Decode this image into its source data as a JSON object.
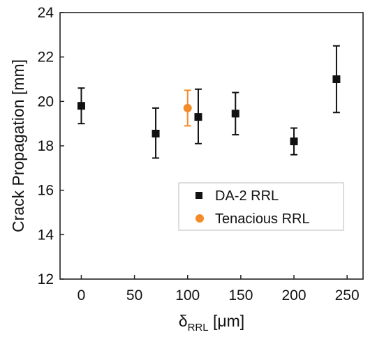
{
  "chart_data": {
    "type": "scatter",
    "xlabel": "δ",
    "xlabel_subscript": "RRL",
    "xlabel_unit": " [μm]",
    "ylabel": "Crack Propagation [mm]",
    "xlim": [
      -20,
      265
    ],
    "ylim": [
      12,
      24
    ],
    "xticks": [
      "0",
      "50",
      "100",
      "150",
      "200",
      "250"
    ],
    "yticks": [
      "12",
      "14",
      "16",
      "18",
      "20",
      "22",
      "24"
    ],
    "legend_position": "lower-right",
    "series": [
      {
        "name": "DA-2 RRL",
        "marker": "square",
        "color": "#111111",
        "points": [
          {
            "x": 0,
            "y": 19.8,
            "err_low": 19.0,
            "err_high": 20.6
          },
          {
            "x": 70,
            "y": 18.55,
            "err_low": 17.45,
            "err_high": 19.7
          },
          {
            "x": 110,
            "y": 19.3,
            "err_low": 18.1,
            "err_high": 20.55
          },
          {
            "x": 145,
            "y": 19.45,
            "err_low": 18.5,
            "err_high": 20.4
          },
          {
            "x": 200,
            "y": 18.2,
            "err_low": 17.6,
            "err_high": 18.8
          },
          {
            "x": 240,
            "y": 21.0,
            "err_low": 19.5,
            "err_high": 22.5
          }
        ]
      },
      {
        "name": "Tenacious RRL",
        "marker": "circle",
        "color": "#f28c28",
        "points": [
          {
            "x": 100,
            "y": 19.7,
            "err_low": 18.9,
            "err_high": 20.5
          }
        ]
      }
    ]
  }
}
